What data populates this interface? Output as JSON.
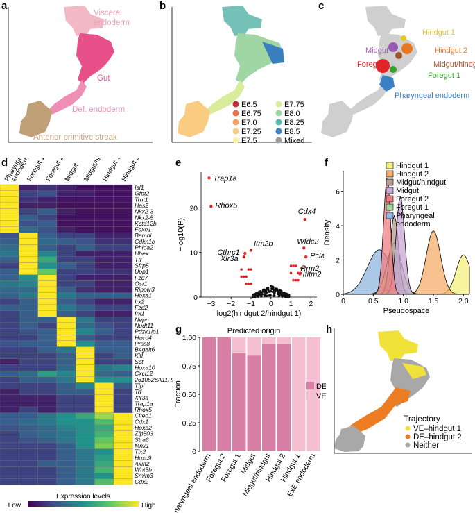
{
  "panels": {
    "a": "a",
    "b": "b",
    "c": "c",
    "d": "d",
    "e": "e",
    "f": "f",
    "g": "g",
    "h": "h"
  },
  "panel_a": {
    "labels": [
      "Visceral",
      "endoderm",
      "Gut",
      "Def. endoderm",
      "Anterior primitive streak"
    ],
    "colors": {
      "visceral": "#f2b8c6",
      "gut": "#e8508a",
      "def": "#f08fb5",
      "aps": "#bfa077"
    }
  },
  "panel_b": {
    "legend": [
      {
        "label": "E6.5",
        "color": "#c0313c"
      },
      {
        "label": "E6.75",
        "color": "#e8714a"
      },
      {
        "label": "E7.0",
        "color": "#f4a463"
      },
      {
        "label": "E7.25",
        "color": "#f9cc82"
      },
      {
        "label": "E7.5",
        "color": "#fdf1ae"
      },
      {
        "label": "E7.75",
        "color": "#d8ec9c"
      },
      {
        "label": "E8.0",
        "color": "#9fd6a4"
      },
      {
        "label": "E8.25",
        "color": "#5db6aa"
      },
      {
        "label": "E8.5",
        "color": "#3a7fbe"
      },
      {
        "label": "Mixed",
        "color": "#9a9a9a"
      }
    ]
  },
  "panel_c": {
    "labels": [
      {
        "text": "Hindgut 1",
        "color": "#e6c62a"
      },
      {
        "text": "Midgut",
        "color": "#9b59b6"
      },
      {
        "text": "Hindgut 2",
        "color": "#e87722"
      },
      {
        "text": "Foregut 2",
        "color": "#e0252a"
      },
      {
        "text": "Midgut/hindgut",
        "color": "#a0522d"
      },
      {
        "text": "Foregut 1",
        "color": "#3aa02f"
      },
      {
        "text": "Pharyngeal endoderm",
        "color": "#3b7fc4"
      }
    ]
  },
  "panel_d": {
    "columns": [
      "Pharyngeal endoderm",
      "Foregut 1",
      "Foregut 2",
      "Midgut",
      "Midgut/hindgut",
      "Hindgut 1",
      "Hindgut 2"
    ],
    "genes": [
      "Isl1",
      "Gfpt2",
      "Trnt1",
      "Has2",
      "Nkx2-3",
      "Nkx2-5",
      "Kctd12b",
      "Foxe1",
      "Bambi",
      "Cdkn1c",
      "Phlda2",
      "Hhex",
      "Ttr",
      "Sfrp5",
      "Upp1",
      "Fzd7",
      "Osr1",
      "Ripply3",
      "Hoxa1",
      "Irx2",
      "Fzd2",
      "Irx1",
      "Nepn",
      "Nudt11",
      "Pdzk1ip1",
      "Hacd4",
      "Prss8",
      "B4galt6",
      "Kitl",
      "Sct",
      "Hoxa10",
      "Cxcl12",
      "2610528A11Rik",
      "Tfpi",
      "Trf",
      "Xlr3a",
      "Trap1a",
      "Rhox5",
      "Cited1",
      "Cdx1",
      "Hoxb2",
      "Zfp503",
      "Stra6",
      "Mnx1",
      "Tlx2",
      "Hoxc9",
      "Axin2",
      "Wnt5b",
      "Smim3",
      "Cdx2"
    ],
    "colorbar_title": "Expression levels",
    "colorbar_low": "Low",
    "colorbar_high": "High"
  },
  "panel_e": {
    "ylabel": "−log10(P)",
    "xlabel": "log2(hindgut 2/hindgut 1)",
    "xticks": [
      "−3",
      "−2",
      "−1",
      "0",
      "1",
      "2"
    ],
    "yticks": [
      "0",
      "10",
      "20"
    ],
    "gene_labels": [
      "Trap1a",
      "Rhox5",
      "Cthrc1",
      "Itm2b",
      "Xlr3a",
      "Cdx4",
      "Wfdc2",
      "Pclaf",
      "Rrm2",
      "Ifitm2"
    ]
  },
  "panel_f": {
    "xlabel": "Pseudospace",
    "ylabel": "Density",
    "xticks": [
      "0",
      "0.5",
      "1.0",
      "1.5",
      "2.0"
    ],
    "yticks": [
      "0",
      "2",
      "4",
      "6"
    ],
    "legend": [
      {
        "label": "Hindgut 1",
        "color": "#f5ef7f"
      },
      {
        "label": "Hindgut 2",
        "color": "#f4ad6a"
      },
      {
        "label": "Midgut/hindgut",
        "color": "#b39b91"
      },
      {
        "label": "Midgut",
        "color": "#c9a7d6"
      },
      {
        "label": "Foregut 2",
        "color": "#ef7f83"
      },
      {
        "label": "Foregut 1",
        "color": "#a3d69a"
      },
      {
        "label": "Pharyngeal endoderm",
        "color": "#8fb6de"
      }
    ]
  },
  "panel_g": {
    "title": "Predicted origin",
    "ylabel": "Fraction",
    "yticks": [
      "0",
      "0.25",
      "0.50",
      "0.75",
      "1.00"
    ],
    "legend": [
      {
        "label": "DE",
        "color": "#d77fa5"
      },
      {
        "label": "VE",
        "color": "#f4bfd0"
      }
    ]
  },
  "panel_h": {
    "legend_title": "Trajectory",
    "legend": [
      {
        "label": "VE–hindgut 1",
        "color": "#f1e23a"
      },
      {
        "label": "DE–hindgut 2",
        "color": "#ec7d22"
      },
      {
        "label": "Neither",
        "color": "#a8a8a8"
      }
    ]
  },
  "chart_data": [
    {
      "type": "heatmap",
      "panel": "d",
      "x": [
        "Pharyngeal endoderm",
        "Foregut 1",
        "Foregut 2",
        "Midgut",
        "Midgut/hindgut",
        "Hindgut 1",
        "Hindgut 2"
      ],
      "y": [
        "Isl1",
        "Gfpt2",
        "Trnt1",
        "Has2",
        "Nkx2-3",
        "Nkx2-5",
        "Kctd12b",
        "Foxe1",
        "Bambi",
        "Cdkn1c",
        "Phlda2",
        "Hhex",
        "Ttr",
        "Sfrp5",
        "Upp1",
        "Fzd7",
        "Osr1",
        "Ripply3",
        "Hoxa1",
        "Irx2",
        "Fzd2",
        "Irx1",
        "Nepn",
        "Nudt11",
        "Pdzk1ip1",
        "Hacd4",
        "Prss8",
        "B4galt6",
        "Kitl",
        "Sct",
        "Hoxa10",
        "Cxcl12",
        "2610528A11Rik",
        "Tfpi",
        "Trf",
        "Xlr3a",
        "Trap1a",
        "Rhox5",
        "Cited1",
        "Cdx1",
        "Hoxb2",
        "Zfp503",
        "Stra6",
        "Mnx1",
        "Tlx2",
        "Hoxc9",
        "Axin2",
        "Wnt5b",
        "Smim3",
        "Cdx2"
      ],
      "values": [
        [
          1.0,
          0.1,
          0.15,
          0.1,
          0.05,
          0.05,
          0.05
        ],
        [
          1.0,
          0.2,
          0.25,
          0.1,
          0.1,
          0.05,
          0.05
        ],
        [
          1.0,
          0.15,
          0.1,
          0.05,
          0.05,
          0.05,
          0.05
        ],
        [
          1.0,
          0.1,
          0.1,
          0.05,
          0.05,
          0.05,
          0.05
        ],
        [
          1.0,
          0.2,
          0.3,
          0.1,
          0.05,
          0.05,
          0.05
        ],
        [
          1.0,
          0.3,
          0.2,
          0.05,
          0.05,
          0.05,
          0.05
        ],
        [
          1.0,
          0.25,
          0.3,
          0.05,
          0.05,
          0.05,
          0.05
        ],
        [
          1.0,
          0.35,
          0.25,
          0.1,
          0.05,
          0.05,
          0.05
        ],
        [
          0.25,
          1.0,
          0.3,
          0.2,
          0.2,
          0.1,
          0.1
        ],
        [
          0.3,
          1.0,
          0.35,
          0.3,
          0.25,
          0.15,
          0.15
        ],
        [
          0.35,
          1.0,
          0.3,
          0.2,
          0.3,
          0.2,
          0.2
        ],
        [
          0.4,
          1.0,
          0.45,
          0.2,
          0.1,
          0.1,
          0.1
        ],
        [
          0.3,
          1.0,
          0.6,
          0.2,
          0.2,
          0.1,
          0.1
        ],
        [
          0.2,
          1.0,
          0.5,
          0.3,
          0.2,
          0.1,
          0.1
        ],
        [
          0.3,
          1.0,
          0.75,
          0.2,
          0.2,
          0.15,
          0.15
        ],
        [
          0.3,
          0.5,
          1.0,
          0.2,
          0.1,
          0.1,
          0.1
        ],
        [
          0.4,
          0.45,
          1.0,
          0.2,
          0.2,
          0.1,
          0.1
        ],
        [
          0.35,
          0.35,
          1.0,
          0.3,
          0.15,
          0.1,
          0.1
        ],
        [
          0.3,
          0.4,
          1.0,
          0.4,
          0.3,
          0.3,
          0.3
        ],
        [
          0.2,
          0.3,
          1.0,
          0.3,
          0.2,
          0.1,
          0.1
        ],
        [
          0.3,
          0.3,
          1.0,
          0.4,
          0.3,
          0.2,
          0.2
        ],
        [
          0.2,
          0.3,
          1.0,
          0.3,
          0.2,
          0.1,
          0.1
        ],
        [
          0.2,
          0.3,
          0.3,
          1.0,
          0.4,
          0.2,
          0.2
        ],
        [
          0.2,
          0.3,
          0.2,
          1.0,
          0.35,
          0.25,
          0.2
        ],
        [
          0.2,
          0.25,
          0.3,
          1.0,
          0.45,
          0.3,
          0.2
        ],
        [
          0.2,
          0.2,
          0.3,
          1.0,
          0.3,
          0.2,
          0.2
        ],
        [
          0.25,
          0.3,
          0.3,
          1.0,
          0.5,
          0.3,
          0.3
        ],
        [
          0.2,
          0.2,
          0.3,
          0.4,
          1.0,
          0.3,
          0.3
        ],
        [
          0.2,
          0.2,
          0.2,
          0.3,
          1.0,
          0.2,
          0.3
        ],
        [
          0.1,
          0.2,
          0.2,
          0.3,
          1.0,
          0.2,
          0.2
        ],
        [
          0.2,
          0.2,
          0.2,
          0.35,
          1.0,
          0.4,
          0.45
        ],
        [
          0.3,
          0.35,
          0.55,
          0.45,
          1.0,
          0.35,
          0.3
        ],
        [
          0.2,
          0.3,
          0.3,
          0.4,
          1.0,
          0.5,
          0.5
        ],
        [
          0.2,
          0.2,
          0.2,
          0.3,
          0.45,
          1.0,
          0.3
        ],
        [
          0.1,
          0.2,
          0.2,
          0.3,
          0.3,
          1.0,
          0.2
        ],
        [
          0.1,
          0.1,
          0.1,
          0.2,
          0.2,
          1.0,
          0.2
        ],
        [
          0.1,
          0.1,
          0.1,
          0.2,
          0.2,
          1.0,
          0.2
        ],
        [
          0.1,
          0.2,
          0.1,
          0.2,
          0.2,
          1.0,
          0.2
        ],
        [
          0.3,
          0.3,
          0.4,
          0.5,
          0.6,
          0.85,
          1.0
        ],
        [
          0.3,
          0.35,
          0.4,
          0.5,
          0.5,
          0.7,
          1.0
        ],
        [
          0.25,
          0.3,
          0.35,
          0.45,
          0.5,
          0.6,
          1.0
        ],
        [
          0.2,
          0.3,
          0.35,
          0.4,
          0.5,
          0.65,
          1.0
        ],
        [
          0.2,
          0.25,
          0.3,
          0.4,
          0.5,
          0.75,
          1.0
        ],
        [
          0.2,
          0.2,
          0.2,
          0.3,
          0.5,
          0.8,
          1.0
        ],
        [
          0.2,
          0.2,
          0.2,
          0.3,
          0.4,
          0.5,
          1.0
        ],
        [
          0.2,
          0.2,
          0.2,
          0.3,
          0.4,
          0.55,
          1.0
        ],
        [
          0.2,
          0.2,
          0.3,
          0.3,
          0.4,
          0.6,
          1.0
        ],
        [
          0.2,
          0.2,
          0.2,
          0.3,
          0.4,
          0.65,
          1.0
        ],
        [
          0.2,
          0.2,
          0.2,
          0.3,
          0.4,
          0.5,
          1.0
        ],
        [
          0.2,
          0.2,
          0.2,
          0.3,
          0.4,
          0.7,
          1.0
        ]
      ]
    },
    {
      "type": "scatter",
      "panel": "e",
      "xlabel": "log2(hindgut 2/hindgut 1)",
      "ylabel": "−log10(P)",
      "xlim": [
        -3.5,
        2.3
      ],
      "ylim": [
        0,
        28
      ],
      "labeled_points": [
        {
          "name": "Trap1a",
          "x": -3.1,
          "y": 26.7
        },
        {
          "name": "Rhox5",
          "x": -3.0,
          "y": 20.3
        },
        {
          "name": "Cthrc1",
          "x": -1.3,
          "y": 9.8
        },
        {
          "name": "Itm2b",
          "x": -1.0,
          "y": 10.5
        },
        {
          "name": "Xlr3a",
          "x": -1.35,
          "y": 9.0
        },
        {
          "name": "Cdx4",
          "x": 1.7,
          "y": 17.4
        },
        {
          "name": "Wfdc2",
          "x": 1.65,
          "y": 11.0
        },
        {
          "name": "Pclaf",
          "x": 1.75,
          "y": 9.0
        },
        {
          "name": "Rrm2",
          "x": 1.55,
          "y": 6.5
        },
        {
          "name": "Ifitm2",
          "x": 1.45,
          "y": 5.2
        }
      ]
    },
    {
      "type": "area",
      "panel": "f",
      "xlabel": "Pseudospace",
      "ylabel": "Density",
      "xlim": [
        0,
        2.1
      ],
      "ylim": [
        0,
        7.2
      ],
      "series": [
        {
          "name": "Pharyngeal endoderm",
          "peak_x": 0.6,
          "peak_y": 2.6,
          "width": 0.2
        },
        {
          "name": "Foregut 1",
          "peak_x": 0.85,
          "peak_y": 3.0,
          "width": 0.12
        },
        {
          "name": "Foregut 2",
          "peak_x": 0.73,
          "peak_y": 6.8,
          "width": 0.06
        },
        {
          "name": "Midgut",
          "peak_x": 0.95,
          "peak_y": 5.7,
          "width": 0.07
        },
        {
          "name": "Midgut/hindgut",
          "peak_x": 0.85,
          "peak_y": 4.6,
          "width": 0.07
        },
        {
          "name": "Hindgut 2",
          "peak_x": 1.5,
          "peak_y": 3.7,
          "width": 0.12
        },
        {
          "name": "Hindgut 1",
          "peak_x": 2.0,
          "peak_y": 2.3,
          "width": 0.12
        }
      ]
    },
    {
      "type": "bar",
      "panel": "g",
      "title": "Predicted origin",
      "ylabel": "Fraction",
      "categories": [
        "Pharyngeal endoderm",
        "Foregut 2",
        "Foregut 1",
        "Midgut",
        "Midgut/hindgut",
        "Hindgut 2",
        "Hindgut 1",
        "ExE endoderm"
      ],
      "series": [
        {
          "name": "DE",
          "values": [
            1.0,
            1.0,
            0.86,
            0.84,
            0.94,
            0.94,
            0.0,
            0.0
          ]
        },
        {
          "name": "VE",
          "values": [
            0.0,
            0.0,
            0.14,
            0.16,
            0.06,
            0.06,
            1.0,
            1.0
          ]
        }
      ],
      "ylim": [
        0,
        1
      ]
    }
  ]
}
